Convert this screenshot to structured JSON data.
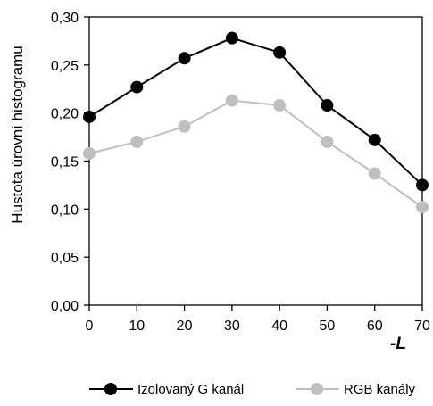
{
  "chart_data": {
    "type": "line",
    "title": "",
    "xlabel": "-L",
    "ylabel": "Hustota úrovní histogramu",
    "x": [
      0,
      10,
      20,
      30,
      40,
      50,
      60,
      70
    ],
    "x_tick_labels": [
      "0",
      "10",
      "20",
      "30",
      "40",
      "50",
      "60",
      "70"
    ],
    "y_ticks": [
      0.0,
      0.05,
      0.1,
      0.15,
      0.2,
      0.25,
      0.3
    ],
    "y_tick_labels": [
      "0,00",
      "0,05",
      "0,10",
      "0,15",
      "0,20",
      "0,25",
      "0,30"
    ],
    "xlim": [
      0,
      70
    ],
    "ylim": [
      0.0,
      0.3
    ],
    "grid": false,
    "legend_position": "bottom",
    "series": [
      {
        "name": "Izolovaný G kanál",
        "color": "#000000",
        "values": [
          0.196,
          0.227,
          0.257,
          0.278,
          0.263,
          0.208,
          0.172,
          0.125
        ]
      },
      {
        "name": "RGB kanály",
        "color": "#bfbfbf",
        "values": [
          0.158,
          0.17,
          0.186,
          0.213,
          0.208,
          0.17,
          0.137,
          0.102
        ]
      }
    ]
  }
}
